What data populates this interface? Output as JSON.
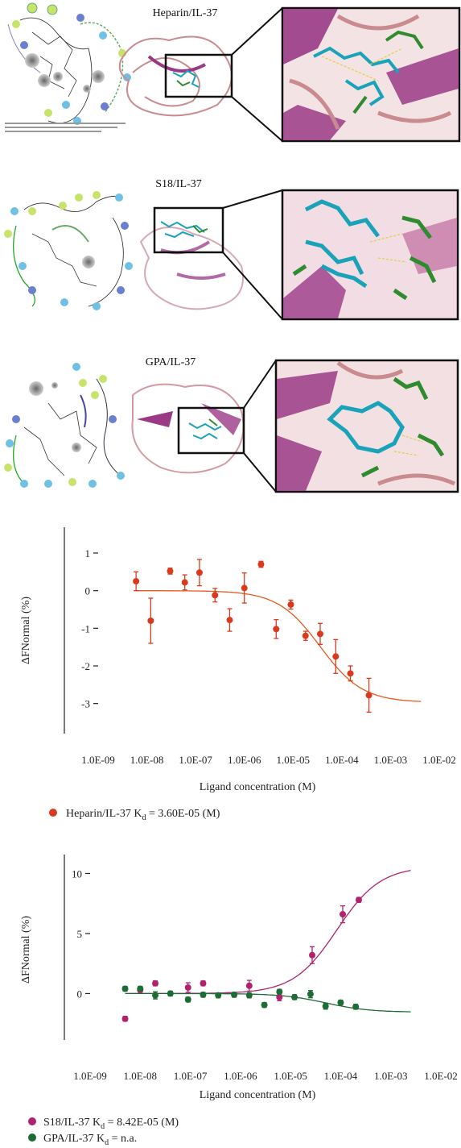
{
  "docking": [
    {
      "title": "Heparin/IL-37"
    },
    {
      "title": "S18/IL-37"
    },
    {
      "title": "GPA/IL-37"
    }
  ],
  "colors": {
    "heparin": "#d93a1e",
    "heparin_fit": "#e85a1c",
    "s18": "#b0226e",
    "gpa": "#1f6b35",
    "ribbon": "#c98b8f",
    "sheet": "#9a3a86",
    "carbon_cyan": "#1aa3b8",
    "carbon_green": "#2e8b2e"
  },
  "chart_data": [
    {
      "type": "scatter",
      "xlabel": "Ligand concentration (M)",
      "ylabel": "ΔFNormal (%)",
      "x_scale": "log",
      "xlim": [
        1e-09,
        0.01
      ],
      "ylim": [
        -3.5,
        1.3
      ],
      "x_tick_labels": [
        "1.0E-09",
        "1.0E-08",
        "1.0E-07",
        "1.0E-06",
        "1.0E-05",
        "1.0E-04",
        "1.0E-03",
        "1.0E-02"
      ],
      "y_ticks": [
        1,
        0,
        -1,
        -2,
        -3
      ],
      "grid": false,
      "legend_position": "bottom-left",
      "series": [
        {
          "key": "heparin",
          "legend_parts": [
            "Heparin/IL-37 K",
            "d",
            " = 3.60E-05 (M)"
          ],
          "points": [
            {
              "x": 6e-09,
              "y": 0.25,
              "err": 0.25
            },
            {
              "x": 1.2e-08,
              "y": -0.8,
              "err": 0.6
            },
            {
              "x": 3e-08,
              "y": 0.52,
              "err": 0.08
            },
            {
              "x": 6e-08,
              "y": 0.22,
              "err": 0.2
            },
            {
              "x": 1.2e-07,
              "y": 0.48,
              "err": 0.35
            },
            {
              "x": 2.5e-07,
              "y": -0.12,
              "err": 0.18
            },
            {
              "x": 5e-07,
              "y": -0.78,
              "err": 0.3
            },
            {
              "x": 1e-06,
              "y": 0.07,
              "err": 0.4
            },
            {
              "x": 2.2e-06,
              "y": 0.7,
              "err": 0.08
            },
            {
              "x": 4.5e-06,
              "y": -1.02,
              "err": 0.25
            },
            {
              "x": 9e-06,
              "y": -0.37,
              "err": 0.12
            },
            {
              "x": 1.8e-05,
              "y": -1.2,
              "err": 0.12
            },
            {
              "x": 3.6e-05,
              "y": -1.15,
              "err": 0.28
            },
            {
              "x": 7.5e-05,
              "y": -1.75,
              "err": 0.45
            },
            {
              "x": 0.00015,
              "y": -2.2,
              "err": 0.2
            },
            {
              "x": 0.00036,
              "y": -2.78,
              "err": 0.45
            }
          ],
          "fit": {
            "kd": 3.6e-05,
            "top": 0.0,
            "bottom": -2.97
          }
        }
      ]
    },
    {
      "type": "scatter",
      "xlabel": "Ligand concentration (M)",
      "ylabel": "ΔFNormal (%)",
      "x_scale": "log",
      "xlim": [
        1e-09,
        0.01
      ],
      "ylim": [
        -4.2,
        10.5
      ],
      "x_tick_labels": [
        "1.0E-09",
        "1.0E-08",
        "1.0E-07",
        "1.0E-06",
        "1.0E-05",
        "1.0E-04",
        "1.0E-03",
        "1.0E-02"
      ],
      "y_ticks": [
        10,
        5,
        0
      ],
      "grid": false,
      "legend_position": "bottom-left",
      "series": [
        {
          "key": "s18",
          "legend_parts": [
            "S18/IL-37 K",
            "d",
            " = 8.42E-05 (M)"
          ],
          "points": [
            {
              "x": 5e-09,
              "y": -2.1,
              "err": 0.2
            },
            {
              "x": 1e-08,
              "y": 0.3,
              "err": 0.2
            },
            {
              "x": 2e-08,
              "y": 0.85,
              "err": 0.2
            },
            {
              "x": 9e-08,
              "y": 0.5,
              "err": 0.4
            },
            {
              "x": 1.8e-07,
              "y": 0.85,
              "err": 0.2
            },
            {
              "x": 1.5e-06,
              "y": 0.65,
              "err": 0.45
            },
            {
              "x": 6e-06,
              "y": -0.3,
              "err": 0.3
            },
            {
              "x": 2.7e-05,
              "y": 3.2,
              "err": 0.7
            },
            {
              "x": 0.00011,
              "y": 6.6,
              "err": 0.7
            },
            {
              "x": 0.00023,
              "y": 7.8,
              "err": 0.2
            }
          ],
          "fit": {
            "kd": 8.42e-05,
            "top": 0.0,
            "bottom": 10.6
          }
        },
        {
          "key": "gpa",
          "legend_parts": [
            "GPA/IL-37 K",
            "d",
            " = n.a."
          ],
          "points": [
            {
              "x": 5e-09,
              "y": 0.4,
              "err": 0.2
            },
            {
              "x": 1e-08,
              "y": 0.4,
              "err": 0.2
            },
            {
              "x": 2e-08,
              "y": -0.15,
              "err": 0.3
            },
            {
              "x": 4e-08,
              "y": 0.0,
              "err": 0.2
            },
            {
              "x": 9e-08,
              "y": -0.5,
              "err": 0.2
            },
            {
              "x": 1.8e-07,
              "y": -0.1,
              "err": 0.2
            },
            {
              "x": 3.6e-07,
              "y": -0.15,
              "err": 0.2
            },
            {
              "x": 7.5e-07,
              "y": -0.1,
              "err": 0.2
            },
            {
              "x": 1.5e-06,
              "y": -0.15,
              "err": 0.2
            },
            {
              "x": 3e-06,
              "y": -0.95,
              "err": 0.2
            },
            {
              "x": 6e-06,
              "y": 0.15,
              "err": 0.2
            },
            {
              "x": 1.2e-05,
              "y": -0.3,
              "err": 0.2
            },
            {
              "x": 2.5e-05,
              "y": -0.05,
              "err": 0.3
            },
            {
              "x": 5e-05,
              "y": -1.05,
              "err": 0.25
            },
            {
              "x": 0.0001,
              "y": -0.75,
              "err": 0.2
            },
            {
              "x": 0.0002,
              "y": -1.1,
              "err": 0.2
            }
          ],
          "fit": {
            "kd": 5e-05,
            "top": 0.0,
            "bottom": -1.55
          }
        }
      ]
    }
  ]
}
